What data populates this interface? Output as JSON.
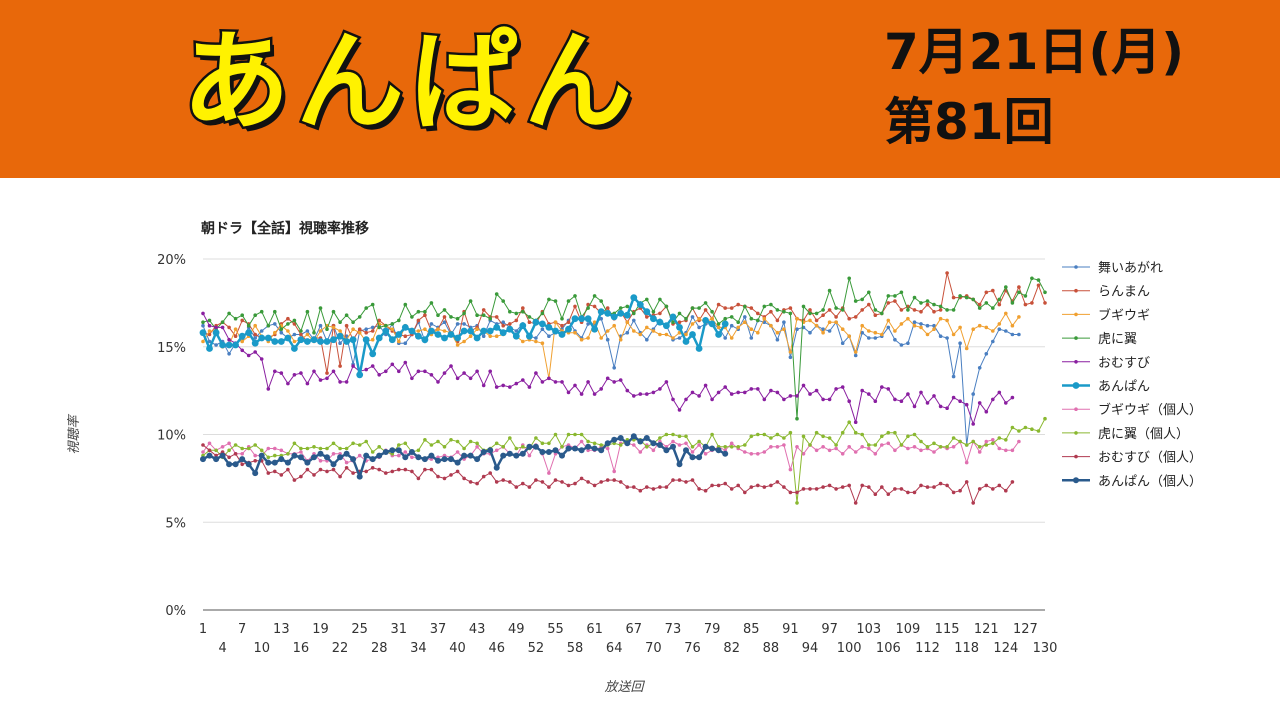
{
  "header": {
    "title": "あんぱん",
    "date": "7月21日(月)",
    "episode": "第81回"
  },
  "colors": {
    "banner": "#e8680a",
    "title_fill": "#fff200",
    "title_stroke": "#111111"
  },
  "chart_data": {
    "type": "line",
    "title": "朝ドラ【全話】視聴率推移",
    "xlabel": "放送回",
    "ylabel": "視聴率",
    "ylim": [
      0,
      20
    ],
    "xlim": [
      1,
      130
    ],
    "yticks": [
      "0%",
      "5%",
      "10%",
      "15%",
      "20%"
    ],
    "ytick_values": [
      0,
      5,
      10,
      15,
      20
    ],
    "xticks_top": [
      "1",
      "7",
      "13",
      "19",
      "25",
      "31",
      "37",
      "43",
      "49",
      "55",
      "61",
      "67",
      "73",
      "79",
      "85",
      "91",
      "97",
      "103",
      "109",
      "115",
      "121",
      "127"
    ],
    "xticks_bottom": [
      "4",
      "10",
      "16",
      "22",
      "28",
      "34",
      "40",
      "46",
      "52",
      "58",
      "64",
      "70",
      "76",
      "82",
      "88",
      "94",
      "100",
      "106",
      "112",
      "118",
      "124",
      "130"
    ],
    "grid": true,
    "legend_position": "right",
    "series": [
      {
        "name": "舞いあがれ",
        "color": "#4a7fc1",
        "width": 1,
        "r": 1.8,
        "n": 126,
        "keys": [
          [
            1,
            15.6
          ],
          [
            20,
            15.8
          ],
          [
            40,
            15.9
          ],
          [
            60,
            16.0
          ],
          [
            80,
            16.1
          ],
          [
            100,
            15.8
          ],
          [
            115,
            15.7
          ],
          [
            118,
            9.4
          ],
          [
            120,
            14.5
          ],
          [
            126,
            16.2
          ]
        ],
        "amp": 0.7,
        "seed": 11,
        "dips": [
          [
            5,
            14.6
          ],
          [
            24,
            14.0
          ],
          [
            64,
            13.8
          ],
          [
            91,
            14.4
          ],
          [
            101,
            14.5
          ],
          [
            117,
            15.2
          ],
          [
            118,
            9.4
          ]
        ]
      },
      {
        "name": "らんまん",
        "color": "#c8513a",
        "width": 1,
        "r": 1.8,
        "n": 130,
        "keys": [
          [
            1,
            16.3
          ],
          [
            20,
            15.8
          ],
          [
            40,
            16.4
          ],
          [
            60,
            16.9
          ],
          [
            80,
            16.8
          ],
          [
            100,
            16.9
          ],
          [
            115,
            17.6
          ],
          [
            130,
            18.0
          ]
        ],
        "amp": 0.6,
        "seed": 22,
        "dips": [
          [
            20,
            13.5
          ],
          [
            22,
            13.9
          ],
          [
            40,
            15.3
          ],
          [
            115,
            19.2
          ],
          [
            122,
            18.2
          ]
        ]
      },
      {
        "name": "ブギウギ",
        "color": "#f0a030",
        "width": 1,
        "r": 1.8,
        "n": 126,
        "keys": [
          [
            1,
            15.5
          ],
          [
            20,
            15.8
          ],
          [
            40,
            15.6
          ],
          [
            60,
            15.9
          ],
          [
            80,
            16.1
          ],
          [
            100,
            16.0
          ],
          [
            126,
            16.5
          ]
        ],
        "amp": 0.6,
        "seed": 33,
        "dips": [
          [
            54,
            13.2
          ],
          [
            91,
            14.7
          ],
          [
            101,
            14.7
          ],
          [
            118,
            14.9
          ]
        ]
      },
      {
        "name": "虎に翼",
        "color": "#3a9a3a",
        "width": 1,
        "r": 1.8,
        "n": 130,
        "keys": [
          [
            1,
            16.4
          ],
          [
            20,
            16.5
          ],
          [
            40,
            17.0
          ],
          [
            60,
            17.3
          ],
          [
            80,
            17.0
          ],
          [
            100,
            17.6
          ],
          [
            120,
            17.2
          ],
          [
            130,
            18.7
          ]
        ],
        "amp": 0.7,
        "seed": 44,
        "dips": [
          [
            46,
            18.0
          ],
          [
            92,
            10.9
          ],
          [
            100,
            18.9
          ]
        ]
      },
      {
        "name": "おむすび",
        "color": "#8a1fa0",
        "width": 1,
        "r": 1.8,
        "n": 125,
        "keys": [
          [
            1,
            16.7
          ],
          [
            5,
            15.4
          ],
          [
            10,
            14.5
          ],
          [
            15,
            13.0
          ],
          [
            30,
            13.8
          ],
          [
            45,
            13.2
          ],
          [
            60,
            12.8
          ],
          [
            80,
            12.3
          ],
          [
            100,
            12.4
          ],
          [
            115,
            11.9
          ],
          [
            120,
            11.6
          ],
          [
            125,
            12.5
          ]
        ],
        "amp": 0.5,
        "seed": 55,
        "dips": [
          [
            11,
            12.6
          ],
          [
            74,
            11.4
          ],
          [
            101,
            10.7
          ],
          [
            119,
            10.6
          ]
        ]
      },
      {
        "name": "あんぱん",
        "color": "#1a9ac8",
        "width": 2.5,
        "r": 3.4,
        "n": 81,
        "keys": [
          [
            1,
            15.4
          ],
          [
            10,
            15.3
          ],
          [
            20,
            15.0
          ],
          [
            30,
            15.8
          ],
          [
            40,
            15.5
          ],
          [
            50,
            15.9
          ],
          [
            60,
            16.2
          ],
          [
            67,
            17.4
          ],
          [
            75,
            15.8
          ],
          [
            81,
            16.2
          ]
        ],
        "amp": 0.5,
        "seed": 66,
        "dips": [
          [
            25,
            13.4
          ],
          [
            27,
            14.6
          ],
          [
            77,
            14.9
          ]
        ]
      },
      {
        "name": "ブギウギ（個人）",
        "color": "#e070b0",
        "width": 1,
        "r": 1.8,
        "n": 126,
        "keys": [
          [
            1,
            9.3
          ],
          [
            20,
            8.7
          ],
          [
            40,
            8.9
          ],
          [
            60,
            9.3
          ],
          [
            80,
            9.2
          ],
          [
            100,
            9.1
          ],
          [
            126,
            9.4
          ]
        ],
        "amp": 0.35,
        "seed": 77,
        "dips": [
          [
            54,
            7.8
          ],
          [
            64,
            7.9
          ],
          [
            91,
            8.0
          ],
          [
            118,
            8.4
          ]
        ]
      },
      {
        "name": "虎に翼（個人）",
        "color": "#8ab830",
        "width": 1,
        "r": 1.8,
        "n": 130,
        "keys": [
          [
            1,
            9.0
          ],
          [
            20,
            9.2
          ],
          [
            40,
            9.4
          ],
          [
            60,
            9.7
          ],
          [
            80,
            9.6
          ],
          [
            100,
            9.8
          ],
          [
            120,
            9.5
          ],
          [
            130,
            10.6
          ]
        ],
        "amp": 0.4,
        "seed": 88,
        "dips": [
          [
            92,
            6.1
          ],
          [
            100,
            10.7
          ]
        ]
      },
      {
        "name": "おむすび（個人）",
        "color": "#b03a50",
        "width": 1,
        "r": 1.8,
        "n": 125,
        "keys": [
          [
            1,
            9.4
          ],
          [
            8,
            8.4
          ],
          [
            15,
            7.6
          ],
          [
            30,
            7.9
          ],
          [
            50,
            7.3
          ],
          [
            70,
            7.1
          ],
          [
            90,
            7.0
          ],
          [
            110,
            6.9
          ],
          [
            125,
            7.0
          ]
        ],
        "amp": 0.35,
        "seed": 99,
        "dips": [
          [
            101,
            6.1
          ],
          [
            119,
            6.1
          ]
        ]
      },
      {
        "name": "あんぱん（個人）",
        "color": "#2a5a8c",
        "width": 2.5,
        "r": 3.0,
        "n": 81,
        "keys": [
          [
            1,
            8.6
          ],
          [
            10,
            8.5
          ],
          [
            20,
            8.6
          ],
          [
            30,
            8.8
          ],
          [
            40,
            8.6
          ],
          [
            50,
            9.0
          ],
          [
            60,
            9.1
          ],
          [
            67,
            9.9
          ],
          [
            75,
            8.9
          ],
          [
            81,
            9.2
          ]
        ],
        "amp": 0.3,
        "seed": 111,
        "dips": [
          [
            9,
            7.8
          ],
          [
            25,
            7.6
          ],
          [
            46,
            8.1
          ],
          [
            74,
            8.3
          ]
        ]
      }
    ]
  }
}
